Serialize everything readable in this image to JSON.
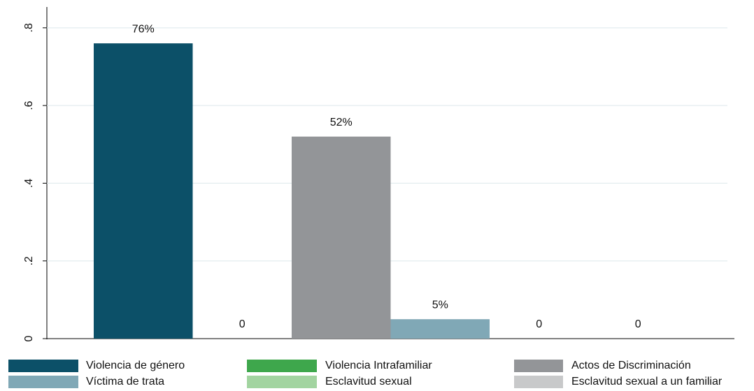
{
  "chart_data": {
    "type": "bar",
    "series": [
      {
        "name": "Violencia de género",
        "color": "#0c5068",
        "values": [
          0.76
        ],
        "value_labels": [
          "76%"
        ]
      },
      {
        "name": "Violencia Intrafamiliar",
        "color": "#3ea74c",
        "values": [
          0
        ]
      },
      {
        "name": "Actos de Discriminación",
        "color": "#939598",
        "values": [
          0.52
        ],
        "value_labels": [
          "52%"
        ]
      },
      {
        "name": "Víctima de trata",
        "color": "#80a8b6",
        "values": [
          0.05
        ],
        "value_labels": [
          "5%"
        ]
      },
      {
        "name": "Esclavitud sexual",
        "color": "#a2d4a0",
        "values": [
          0
        ]
      },
      {
        "name": "Esclavitud sexual a un familiar",
        "color": "#c8c9ca",
        "values": [
          0
        ]
      }
    ],
    "ylim": [
      0,
      0.85
    ],
    "yticks": [
      0,
      {
        "value": 0.2,
        "label": ".2"
      },
      {
        "value": 0.4,
        "label": ".4"
      },
      {
        "value": 0.6,
        "label": ".6"
      },
      {
        "value": 0.8,
        "label": ".8"
      }
    ],
    "grid": true
  }
}
